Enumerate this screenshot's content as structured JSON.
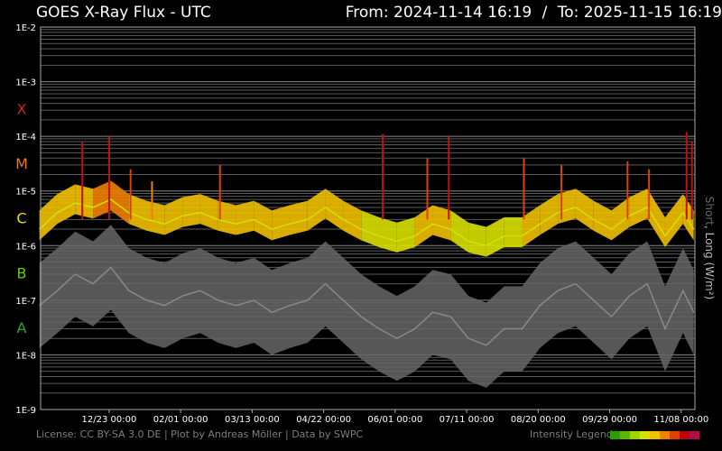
{
  "header": {
    "title": "GOES X-Ray Flux - UTC",
    "from_label": "From:",
    "from_value": "2024-11-14 16:19",
    "separator": "/",
    "to_label": "To:",
    "to_value": "2025-11-15 16:19"
  },
  "footer": {
    "license": "License: CC BY-SA 3.0 DE | Plot by Andreas Möller | Data by SWPC",
    "legend_label": "Intensity Legend",
    "legend_colors": [
      "#2e9d00",
      "#5ab800",
      "#9ed600",
      "#d8e000",
      "#f0c000",
      "#f08000",
      "#e04000",
      "#c00000",
      "#b0104a"
    ]
  },
  "side_label": {
    "short": "Short",
    "separator": ", ",
    "long": "Long (W/m²)"
  },
  "chart_data": {
    "type": "line",
    "title": "GOES X-Ray Flux - UTC",
    "ylabel": "Short, Long (W/m²)",
    "y_scale": "log",
    "ylim": [
      1e-09,
      0.01
    ],
    "y_ticks": [
      "1E-2",
      "1E-3",
      "1E-4",
      "1E-5",
      "1E-6",
      "1E-7",
      "1E-8",
      "1E-9"
    ],
    "y_tick_values": [
      0.01,
      0.001,
      0.0001,
      1e-05,
      1e-06,
      1e-07,
      1e-08,
      1e-09
    ],
    "class_labels": [
      {
        "label": "X",
        "flux": 0.00032,
        "color": "#cc2222"
      },
      {
        "label": "M",
        "flux": 3.2e-05,
        "color": "#f07820"
      },
      {
        "label": "C",
        "flux": 3.2e-06,
        "color": "#e8e000"
      },
      {
        "label": "B",
        "flux": 3.2e-07,
        "color": "#6ac800"
      },
      {
        "label": "A",
        "flux": 3.2e-08,
        "color": "#28a828"
      }
    ],
    "x_range": [
      "2024-11-14 16:19",
      "2025-11-15 16:19"
    ],
    "x_ticks": [
      {
        "label": "12/23 00:00",
        "date": "2024-12-23"
      },
      {
        "label": "02/01 00:00",
        "date": "2025-02-01"
      },
      {
        "label": "03/13 00:00",
        "date": "2025-03-13"
      },
      {
        "label": "04/22 00:00",
        "date": "2025-04-22"
      },
      {
        "label": "06/01 00:00",
        "date": "2025-06-01"
      },
      {
        "label": "07/11 00:00",
        "date": "2025-07-11"
      },
      {
        "label": "08/20 00:00",
        "date": "2025-08-20"
      },
      {
        "label": "09/29 00:00",
        "date": "2025-09-29"
      },
      {
        "label": "11/08 00:00",
        "date": "2025-11-08"
      }
    ],
    "grid": true,
    "series": [
      {
        "name": "Long",
        "color_scale": "intensity",
        "x": [
          "2024-11-14",
          "2024-11-24",
          "2024-12-04",
          "2024-12-14",
          "2024-12-24",
          "2025-01-03",
          "2025-01-13",
          "2025-01-23",
          "2025-02-02",
          "2025-02-12",
          "2025-02-22",
          "2025-03-04",
          "2025-03-14",
          "2025-03-24",
          "2025-04-03",
          "2025-04-13",
          "2025-04-23",
          "2025-05-03",
          "2025-05-13",
          "2025-05-23",
          "2025-06-02",
          "2025-06-12",
          "2025-06-22",
          "2025-07-02",
          "2025-07-12",
          "2025-07-22",
          "2025-08-01",
          "2025-08-11",
          "2025-08-21",
          "2025-08-31",
          "2025-09-10",
          "2025-09-20",
          "2025-09-30",
          "2025-10-10",
          "2025-10-20",
          "2025-10-30",
          "2025-11-09",
          "2025-11-15"
        ],
        "values": [
          2e-06,
          4e-06,
          6e-06,
          5e-06,
          7e-06,
          4e-06,
          3e-06,
          2.5e-06,
          3.5e-06,
          4e-06,
          3e-06,
          2.5e-06,
          3e-06,
          2e-06,
          2.5e-06,
          3e-06,
          5e-06,
          3e-06,
          2e-06,
          1.5e-06,
          1.2e-06,
          1.5e-06,
          2.5e-06,
          2e-06,
          1.2e-06,
          1e-06,
          1.5e-06,
          1.5e-06,
          2.5e-06,
          4e-06,
          5e-06,
          3e-06,
          2e-06,
          3.5e-06,
          5e-06,
          1.5e-06,
          4e-06,
          2e-06
        ]
      },
      {
        "name": "Short",
        "color": "#666666",
        "x": [
          "2024-11-14",
          "2024-11-24",
          "2024-12-04",
          "2024-12-14",
          "2024-12-24",
          "2025-01-03",
          "2025-01-13",
          "2025-01-23",
          "2025-02-02",
          "2025-02-12",
          "2025-02-22",
          "2025-03-04",
          "2025-03-14",
          "2025-03-24",
          "2025-04-03",
          "2025-04-13",
          "2025-04-23",
          "2025-05-03",
          "2025-05-13",
          "2025-05-23",
          "2025-06-02",
          "2025-06-12",
          "2025-06-22",
          "2025-07-02",
          "2025-07-12",
          "2025-07-22",
          "2025-08-01",
          "2025-08-11",
          "2025-08-21",
          "2025-08-31",
          "2025-09-10",
          "2025-09-20",
          "2025-09-30",
          "2025-10-10",
          "2025-10-20",
          "2025-10-30",
          "2025-11-09",
          "2025-11-15"
        ],
        "values": [
          8e-08,
          1.5e-07,
          3e-07,
          2e-07,
          4e-07,
          1.5e-07,
          1e-07,
          8e-08,
          1.2e-07,
          1.5e-07,
          1e-07,
          8e-08,
          1e-07,
          6e-08,
          8e-08,
          1e-07,
          2e-07,
          1e-07,
          5e-08,
          3e-08,
          2e-08,
          3e-08,
          6e-08,
          5e-08,
          2e-08,
          1.5e-08,
          3e-08,
          3e-08,
          8e-08,
          1.5e-07,
          2e-07,
          1e-07,
          5e-08,
          1.2e-07,
          2e-07,
          3e-08,
          1.5e-07,
          6e-08
        ]
      }
    ],
    "flare_peaks": [
      {
        "date": "2024-12-08",
        "value": 8e-05
      },
      {
        "date": "2024-12-23",
        "value": 0.0001
      },
      {
        "date": "2025-01-04",
        "value": 2.5e-05
      },
      {
        "date": "2025-01-16",
        "value": 1.5e-05
      },
      {
        "date": "2025-02-23",
        "value": 3e-05
      },
      {
        "date": "2025-05-25",
        "value": 0.00011
      },
      {
        "date": "2025-06-19",
        "value": 4e-05
      },
      {
        "date": "2025-07-01",
        "value": 0.0001
      },
      {
        "date": "2025-08-12",
        "value": 4e-05
      },
      {
        "date": "2025-09-02",
        "value": 3e-05
      },
      {
        "date": "2025-10-09",
        "value": 3.5e-05
      },
      {
        "date": "2025-10-21",
        "value": 2.5e-05
      },
      {
        "date": "2025-11-11",
        "value": 0.00012
      },
      {
        "date": "2025-11-14",
        "value": 8e-05
      }
    ]
  }
}
